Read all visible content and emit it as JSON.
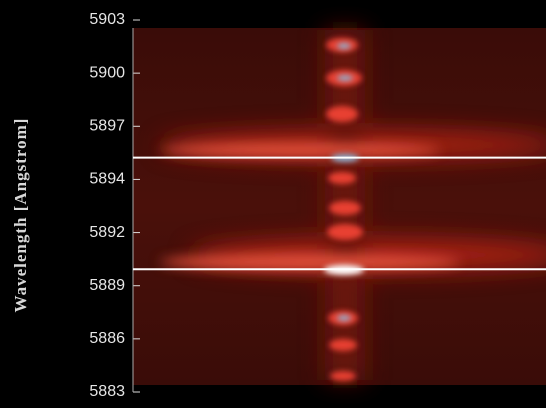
{
  "chart_data": {
    "type": "spectrogram",
    "y_label": "Wavelength [Angstrom]",
    "ylim": [
      5883,
      5903
    ],
    "yticks": [
      {
        "value": 5903,
        "label": "5903"
      },
      {
        "value": 5900.143,
        "label": "5900"
      },
      {
        "value": 5897.286,
        "label": "5897"
      },
      {
        "value": 5894.429,
        "label": "5894"
      },
      {
        "value": 5891.571,
        "label": "5892"
      },
      {
        "value": 5888.714,
        "label": "5889"
      },
      {
        "value": 5885.857,
        "label": "5886"
      },
      {
        "value": 5883,
        "label": "5883"
      }
    ],
    "lines": [
      5895.6,
      5889.6
    ],
    "line_color": "#ffffff"
  }
}
